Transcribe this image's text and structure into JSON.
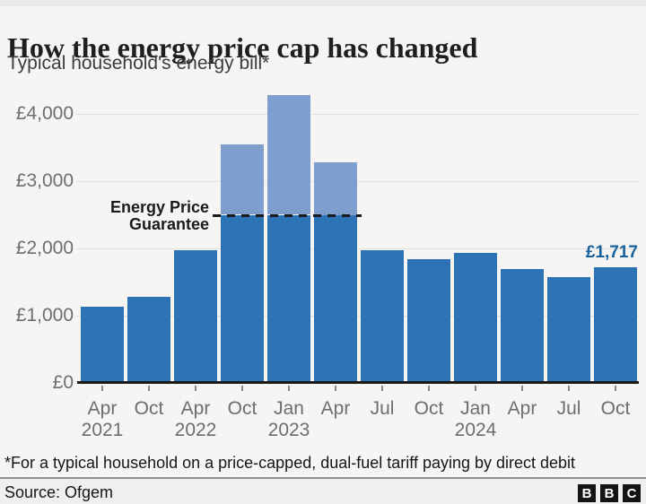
{
  "page": {
    "title": "How the energy price cap has changed",
    "subtitle": "Typical household's energy bill*"
  },
  "chart_data": {
    "type": "bar",
    "title": "How the energy price cap has changed",
    "subtitle": "Typical household's energy bill*",
    "categories": [
      "Apr 2021",
      "Oct 2021",
      "Apr 2022",
      "Oct 2022",
      "Jan 2023",
      "Apr 2023",
      "Jul 2023",
      "Oct 2023",
      "Jan 2024",
      "Apr 2024",
      "Jul 2024",
      "Oct 2024"
    ],
    "values": [
      1138,
      1277,
      1971,
      3549,
      4279,
      3280,
      1976,
      1834,
      1928,
      1690,
      1568,
      1717
    ],
    "x_tick_labels": [
      "Apr",
      "Oct",
      "Apr",
      "Oct",
      "Jan",
      "Apr",
      "Jul",
      "Oct",
      "Jan",
      "Apr",
      "Jul",
      "Oct"
    ],
    "year_labels": [
      {
        "text": "2021",
        "bar_index": 0
      },
      {
        "text": "2022",
        "bar_index": 2
      },
      {
        "text": "2023",
        "bar_index": 4
      },
      {
        "text": "2024",
        "bar_index": 8
      }
    ],
    "y_ticks": [
      {
        "label": "£0",
        "value": 0
      },
      {
        "label": "£1,000",
        "value": 1000
      },
      {
        "label": "£2,000",
        "value": 2000
      },
      {
        "label": "£3,000",
        "value": 3000
      },
      {
        "label": "£4,000",
        "value": 4000
      }
    ],
    "ylim": [
      0,
      4500
    ],
    "grid": "horizontal",
    "annotation_line": {
      "value": 2500,
      "label_line1": "Energy Price",
      "label_line2": "Guarantee",
      "covers_bars": [
        3,
        4,
        5
      ]
    },
    "last_value_label": "£1,717",
    "colors": {
      "bar": "#2d72b5",
      "bar_above_guarantee": "#7e9ecd",
      "value_label": "#17609e",
      "axis": "#1a1a1a",
      "gridline": "#e2e1df",
      "tick_text": "#6e6e6e"
    }
  },
  "footer": {
    "footnote": "*For a typical household on a price-capped, dual-fuel tariff paying by direct debit",
    "source": "Source: Ofgem",
    "bbc_logo_letters": [
      "B",
      "B",
      "C"
    ]
  }
}
